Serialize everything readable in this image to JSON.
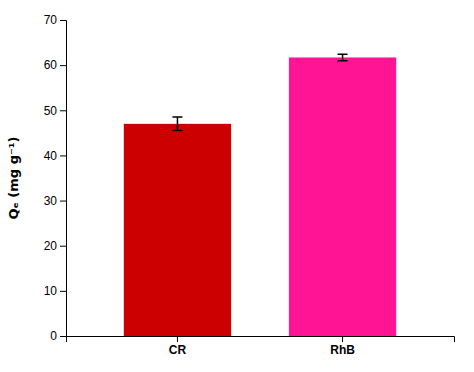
{
  "chart_data": {
    "type": "bar",
    "categories": [
      "CR",
      "RhB"
    ],
    "values": [
      47.0,
      61.7
    ],
    "errors": [
      1.5,
      0.7
    ],
    "colors": [
      "#cc0000",
      "#ff1493"
    ],
    "ylabel": "Qₑ (mg g⁻¹)",
    "ylim": [
      0,
      70
    ],
    "yticks": [
      0,
      10,
      20,
      30,
      40,
      50,
      60,
      70
    ],
    "grid": false
  }
}
